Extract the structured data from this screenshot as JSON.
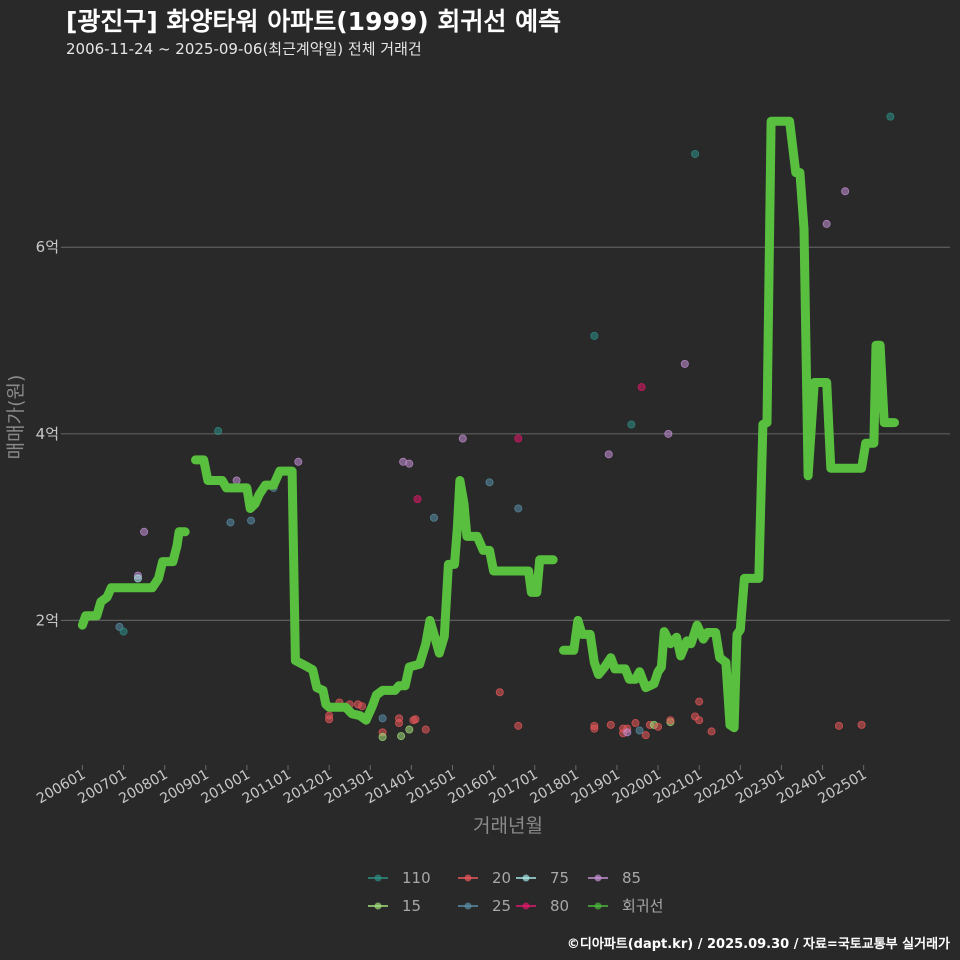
{
  "chart_data": {
    "type": "line+scatter",
    "title": "[광진구] 화양타워 아파트(1999) 회귀선 예측",
    "subtitle": "2006-11-24 ~ 2025-09-06(최근계약일) 전체 거래건",
    "xlabel": "거래년월",
    "ylabel": "매매가(원)",
    "caption": "©디아파트(dapt.kr) / 2025.09.30 / 자료=국토교통부 실거래가",
    "xlim": [
      2005.6,
      2027.1
    ],
    "ylim": [
      0.45,
      7.9
    ],
    "y_ticks": [
      2,
      4,
      6
    ],
    "y_tick_labels": [
      "2억",
      "4억",
      "6억"
    ],
    "x_ticks": [
      2006,
      2007,
      2008,
      2009,
      2010,
      2011,
      2012,
      2013,
      2014,
      2015,
      2016,
      2017,
      2018,
      2019,
      2020,
      2021,
      2022,
      2023,
      2024,
      2025
    ],
    "x_tick_labels": [
      "200601",
      "200701",
      "200801",
      "200901",
      "201001",
      "201101",
      "201201",
      "201301",
      "201401",
      "201501",
      "201601",
      "201701",
      "201801",
      "201901",
      "202001",
      "202101",
      "202201",
      "202301",
      "202401",
      "202501"
    ],
    "legend": [
      {
        "name": "110",
        "color": "#2e8f86"
      },
      {
        "name": "15",
        "color": "#a2e07a"
      },
      {
        "name": "20",
        "color": "#e8585a"
      },
      {
        "name": "25",
        "color": "#5a8ea8"
      },
      {
        "name": "75",
        "color": "#a8e6e6"
      },
      {
        "name": "80",
        "color": "#e0186a"
      },
      {
        "name": "85",
        "color": "#c490d6"
      },
      {
        "name": "회귀선",
        "color": "#4cb83c"
      }
    ],
    "regression_color": "#58c03e",
    "regression_segments": [
      [
        [
          2006.0,
          1.95
        ],
        [
          2006.08,
          2.05
        ],
        [
          2006.35,
          2.05
        ],
        [
          2006.45,
          2.2
        ],
        [
          2006.6,
          2.25
        ],
        [
          2006.7,
          2.35
        ],
        [
          2007.7,
          2.35
        ],
        [
          2007.85,
          2.45
        ],
        [
          2007.95,
          2.63
        ],
        [
          2008.2,
          2.63
        ],
        [
          2008.3,
          2.8
        ],
        [
          2008.35,
          2.95
        ],
        [
          2008.5,
          2.95
        ]
      ],
      [
        [
          2008.75,
          3.72
        ],
        [
          2008.95,
          3.72
        ],
        [
          2009.05,
          3.5
        ],
        [
          2009.4,
          3.5
        ],
        [
          2009.5,
          3.42
        ],
        [
          2010.0,
          3.42
        ],
        [
          2010.08,
          3.2
        ],
        [
          2010.2,
          3.25
        ],
        [
          2010.3,
          3.35
        ],
        [
          2010.45,
          3.45
        ],
        [
          2010.65,
          3.45
        ],
        [
          2010.8,
          3.6
        ],
        [
          2011.1,
          3.6
        ],
        [
          2011.18,
          1.57
        ],
        [
          2011.4,
          1.52
        ],
        [
          2011.6,
          1.47
        ],
        [
          2011.7,
          1.28
        ],
        [
          2011.85,
          1.25
        ],
        [
          2011.92,
          1.1
        ],
        [
          2012.0,
          1.07
        ],
        [
          2012.4,
          1.07
        ],
        [
          2012.55,
          1.0
        ],
        [
          2012.75,
          0.98
        ],
        [
          2012.9,
          0.93
        ],
        [
          2013.05,
          1.08
        ],
        [
          2013.15,
          1.2
        ],
        [
          2013.3,
          1.25
        ],
        [
          2013.6,
          1.25
        ],
        [
          2013.7,
          1.3
        ],
        [
          2013.85,
          1.3
        ],
        [
          2013.95,
          1.5
        ],
        [
          2014.2,
          1.53
        ],
        [
          2014.35,
          1.75
        ],
        [
          2014.45,
          2.0
        ],
        [
          2014.55,
          1.85
        ],
        [
          2014.68,
          1.65
        ],
        [
          2014.8,
          1.83
        ],
        [
          2014.9,
          2.6
        ],
        [
          2015.05,
          2.6
        ],
        [
          2015.12,
          3.0
        ],
        [
          2015.18,
          3.5
        ],
        [
          2015.28,
          3.25
        ],
        [
          2015.35,
          2.9
        ],
        [
          2015.6,
          2.9
        ],
        [
          2015.75,
          2.75
        ],
        [
          2015.9,
          2.75
        ],
        [
          2016.0,
          2.53
        ],
        [
          2016.85,
          2.53
        ],
        [
          2016.92,
          2.3
        ],
        [
          2017.05,
          2.3
        ],
        [
          2017.12,
          2.65
        ],
        [
          2017.45,
          2.65
        ]
      ],
      [
        [
          2017.7,
          1.68
        ],
        [
          2017.95,
          1.68
        ],
        [
          2018.05,
          2.0
        ],
        [
          2018.15,
          1.85
        ],
        [
          2018.35,
          1.85
        ],
        [
          2018.45,
          1.55
        ],
        [
          2018.55,
          1.42
        ],
        [
          2018.7,
          1.5
        ],
        [
          2018.85,
          1.6
        ],
        [
          2018.95,
          1.48
        ],
        [
          2019.2,
          1.48
        ],
        [
          2019.3,
          1.37
        ],
        [
          2019.45,
          1.37
        ],
        [
          2019.55,
          1.45
        ],
        [
          2019.7,
          1.28
        ],
        [
          2019.9,
          1.32
        ],
        [
          2020.0,
          1.45
        ],
        [
          2020.08,
          1.5
        ],
        [
          2020.15,
          1.88
        ],
        [
          2020.3,
          1.75
        ],
        [
          2020.45,
          1.82
        ],
        [
          2020.55,
          1.62
        ],
        [
          2020.7,
          1.78
        ],
        [
          2020.8,
          1.75
        ],
        [
          2020.95,
          1.95
        ],
        [
          2021.1,
          1.8
        ],
        [
          2021.2,
          1.87
        ],
        [
          2021.4,
          1.87
        ],
        [
          2021.5,
          1.6
        ],
        [
          2021.65,
          1.55
        ],
        [
          2021.75,
          0.88
        ],
        [
          2021.85,
          0.85
        ],
        [
          2021.92,
          1.85
        ],
        [
          2022.0,
          1.9
        ],
        [
          2022.1,
          2.45
        ],
        [
          2022.45,
          2.45
        ],
        [
          2022.55,
          4.1
        ],
        [
          2022.65,
          4.12
        ],
        [
          2022.75,
          7.35
        ],
        [
          2023.2,
          7.35
        ],
        [
          2023.35,
          6.8
        ],
        [
          2023.45,
          6.8
        ],
        [
          2023.55,
          6.2
        ],
        [
          2023.65,
          3.55
        ],
        [
          2023.8,
          4.55
        ],
        [
          2024.1,
          4.55
        ],
        [
          2024.2,
          3.63
        ],
        [
          2024.95,
          3.63
        ],
        [
          2025.05,
          3.9
        ],
        [
          2025.25,
          3.9
        ],
        [
          2025.3,
          4.95
        ],
        [
          2025.4,
          4.95
        ],
        [
          2025.5,
          4.12
        ],
        [
          2025.75,
          4.12
        ]
      ]
    ],
    "points": [
      {
        "x": 2006.9,
        "y": 1.93,
        "s": "25"
      },
      {
        "x": 2007.0,
        "y": 1.88,
        "s": "110"
      },
      {
        "x": 2007.35,
        "y": 2.48,
        "s": "85"
      },
      {
        "x": 2007.35,
        "y": 2.45,
        "s": "75"
      },
      {
        "x": 2007.5,
        "y": 2.95,
        "s": "85"
      },
      {
        "x": 2009.3,
        "y": 4.03,
        "s": "110"
      },
      {
        "x": 2009.6,
        "y": 3.05,
        "s": "25"
      },
      {
        "x": 2009.75,
        "y": 3.5,
        "s": "85"
      },
      {
        "x": 2010.1,
        "y": 3.07,
        "s": "25"
      },
      {
        "x": 2010.5,
        "y": 3.45,
        "s": "75"
      },
      {
        "x": 2010.65,
        "y": 3.42,
        "s": "25"
      },
      {
        "x": 2011.1,
        "y": 3.52,
        "s": "75"
      },
      {
        "x": 2011.25,
        "y": 3.7,
        "s": "85"
      },
      {
        "x": 2012.0,
        "y": 0.98,
        "s": "20"
      },
      {
        "x": 2012.0,
        "y": 0.94,
        "s": "20"
      },
      {
        "x": 2012.25,
        "y": 1.12,
        "s": "20"
      },
      {
        "x": 2012.5,
        "y": 1.1,
        "s": "20"
      },
      {
        "x": 2012.7,
        "y": 1.1,
        "s": "20"
      },
      {
        "x": 2012.8,
        "y": 1.08,
        "s": "20"
      },
      {
        "x": 2013.3,
        "y": 0.95,
        "s": "25"
      },
      {
        "x": 2013.3,
        "y": 0.8,
        "s": "20"
      },
      {
        "x": 2013.3,
        "y": 0.75,
        "s": "15"
      },
      {
        "x": 2013.7,
        "y": 0.95,
        "s": "20"
      },
      {
        "x": 2013.7,
        "y": 0.9,
        "s": "20"
      },
      {
        "x": 2013.75,
        "y": 0.76,
        "s": "15"
      },
      {
        "x": 2013.95,
        "y": 0.83,
        "s": "15"
      },
      {
        "x": 2014.05,
        "y": 0.93,
        "s": "20"
      },
      {
        "x": 2014.1,
        "y": 0.94,
        "s": "20"
      },
      {
        "x": 2014.35,
        "y": 0.83,
        "s": "20"
      },
      {
        "x": 2013.8,
        "y": 3.7,
        "s": "85"
      },
      {
        "x": 2013.95,
        "y": 3.68,
        "s": "85"
      },
      {
        "x": 2014.15,
        "y": 3.3,
        "s": "80"
      },
      {
        "x": 2014.55,
        "y": 3.1,
        "s": "25"
      },
      {
        "x": 2015.25,
        "y": 3.95,
        "s": "85"
      },
      {
        "x": 2015.9,
        "y": 3.48,
        "s": "25"
      },
      {
        "x": 2016.15,
        "y": 1.23,
        "s": "20"
      },
      {
        "x": 2016.6,
        "y": 3.2,
        "s": "25"
      },
      {
        "x": 2016.6,
        "y": 3.95,
        "s": "80"
      },
      {
        "x": 2016.6,
        "y": 0.87,
        "s": "20"
      },
      {
        "x": 2018.45,
        "y": 5.05,
        "s": "110"
      },
      {
        "x": 2018.45,
        "y": 0.87,
        "s": "20"
      },
      {
        "x": 2018.45,
        "y": 0.84,
        "s": "20"
      },
      {
        "x": 2018.8,
        "y": 3.78,
        "s": "85"
      },
      {
        "x": 2018.85,
        "y": 0.88,
        "s": "20"
      },
      {
        "x": 2019.15,
        "y": 0.84,
        "s": "20"
      },
      {
        "x": 2019.15,
        "y": 0.79,
        "s": "20"
      },
      {
        "x": 2019.25,
        "y": 0.84,
        "s": "20"
      },
      {
        "x": 2019.25,
        "y": 0.8,
        "s": "85"
      },
      {
        "x": 2019.35,
        "y": 4.1,
        "s": "110"
      },
      {
        "x": 2019.45,
        "y": 0.9,
        "s": "20"
      },
      {
        "x": 2019.55,
        "y": 0.82,
        "s": "25"
      },
      {
        "x": 2019.6,
        "y": 4.5,
        "s": "80"
      },
      {
        "x": 2019.7,
        "y": 0.77,
        "s": "20"
      },
      {
        "x": 2019.8,
        "y": 0.88,
        "s": "20"
      },
      {
        "x": 2019.9,
        "y": 0.88,
        "s": "15"
      },
      {
        "x": 2020.0,
        "y": 0.86,
        "s": "20"
      },
      {
        "x": 2020.25,
        "y": 4.0,
        "s": "85"
      },
      {
        "x": 2020.3,
        "y": 0.91,
        "s": "15"
      },
      {
        "x": 2020.3,
        "y": 0.93,
        "s": "20"
      },
      {
        "x": 2020.65,
        "y": 4.75,
        "s": "85"
      },
      {
        "x": 2020.9,
        "y": 7.0,
        "s": "110"
      },
      {
        "x": 2020.9,
        "y": 0.97,
        "s": "20"
      },
      {
        "x": 2021.0,
        "y": 1.13,
        "s": "20"
      },
      {
        "x": 2021.0,
        "y": 0.93,
        "s": "20"
      },
      {
        "x": 2021.3,
        "y": 0.81,
        "s": "20"
      },
      {
        "x": 2024.1,
        "y": 6.25,
        "s": "85"
      },
      {
        "x": 2024.55,
        "y": 6.6,
        "s": "85"
      },
      {
        "x": 2024.4,
        "y": 0.87,
        "s": "20"
      },
      {
        "x": 2024.95,
        "y": 0.88,
        "s": "20"
      },
      {
        "x": 2025.65,
        "y": 7.4,
        "s": "110"
      }
    ]
  }
}
